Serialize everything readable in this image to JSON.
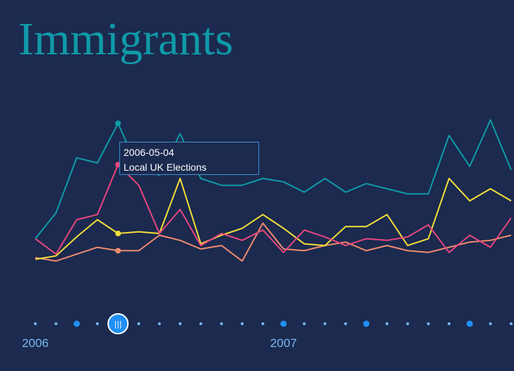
{
  "title": "Immigrants",
  "tooltip": {
    "date": "2006-05-04",
    "event": "Local UK Elections"
  },
  "timeline": {
    "labels": [
      "2006",
      "2007"
    ],
    "handle_glyph": "|||",
    "selected_index": 4
  },
  "colors": {
    "background": "#1b2a4e",
    "title": "#0f9aa8",
    "teal": "#0f9aa8",
    "pink": "#e8457f",
    "yellow": "#f5de3a",
    "salmon": "#f08a6e",
    "timeline_dot": "#7ab8f0",
    "timeline_major": "#1f8ff2",
    "tooltip_border": "#3a8fd6"
  },
  "chart_data": {
    "type": "line",
    "title": "Immigrants",
    "xlabel": "",
    "ylabel": "",
    "x_ticks": [
      "2006",
      "2007"
    ],
    "ylim": [
      0,
      100
    ],
    "grid": false,
    "legend": "none",
    "series": [
      {
        "color": "#0f9aa8",
        "values": [
          31,
          46,
          78,
          75,
          98,
          71,
          68,
          92,
          66,
          62,
          62,
          66,
          64,
          58,
          66,
          58,
          63,
          60,
          57,
          57,
          91,
          73,
          100,
          71
        ]
      },
      {
        "color": "#e8457f",
        "values": [
          31,
          22,
          42,
          45,
          74,
          62,
          34,
          48,
          27,
          34,
          30,
          36,
          23,
          36,
          32,
          27,
          31,
          30,
          32,
          39,
          23,
          33,
          26,
          43
        ]
      },
      {
        "color": "#f5de3a",
        "values": [
          19,
          21,
          32,
          42,
          34,
          35,
          34,
          66,
          28,
          33,
          37,
          45,
          37,
          28,
          27,
          38,
          38,
          45,
          27,
          31,
          66,
          53,
          60,
          53
        ]
      },
      {
        "color": "#f08a6e",
        "values": [
          20,
          18,
          22,
          26,
          24,
          24,
          33,
          30,
          25,
          27,
          18,
          40,
          25,
          24,
          27,
          29,
          24,
          27,
          24,
          23,
          26,
          29,
          30,
          33
        ]
      }
    ],
    "highlight_index": 4
  }
}
